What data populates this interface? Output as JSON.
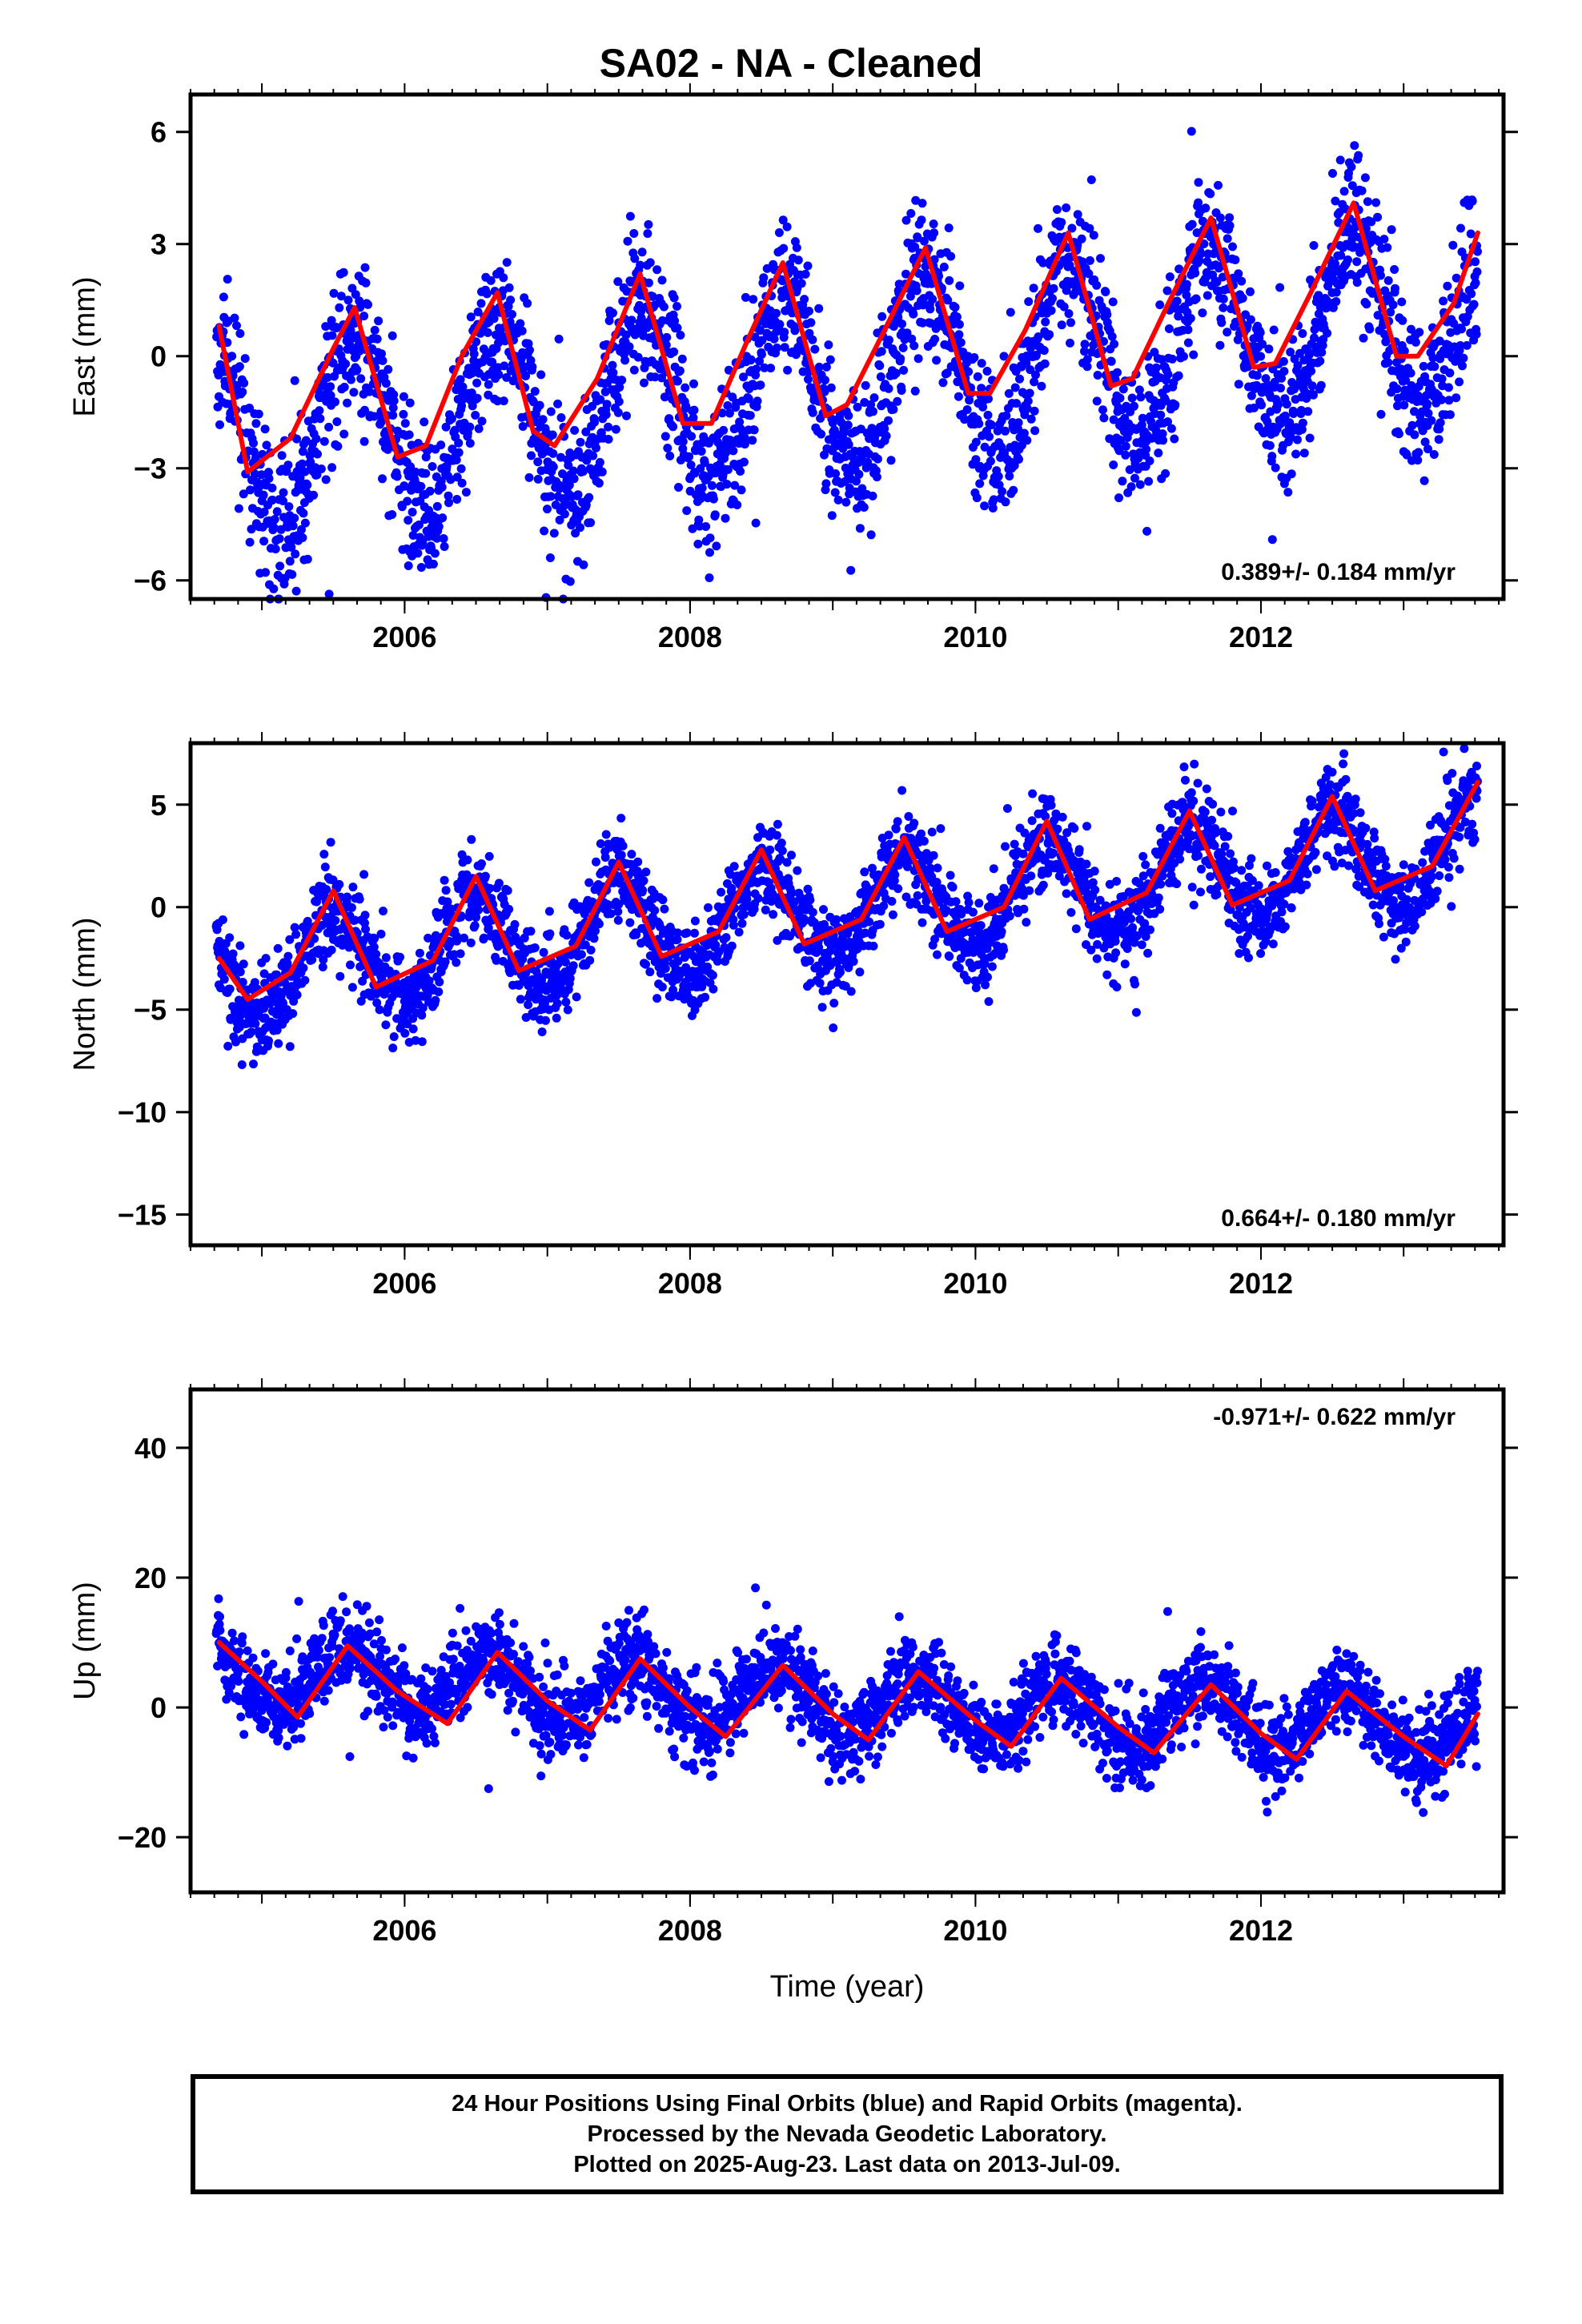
{
  "title": "SA02  - NA - Cleaned",
  "colors": {
    "points": "#0000ff",
    "fit": "#ff0000",
    "frame": "#000000"
  },
  "footer": {
    "line1": "24 Hour Positions Using Final Orbits (blue) and Rapid Orbits (magenta).",
    "line2": "Processed by the Nevada Geodetic Laboratory.",
    "line3": "Plotted on 2025-Aug-23. Last data on 2013-Jul-09."
  },
  "chart_data": [
    {
      "type": "scatter",
      "component": "east",
      "ylabel": "East (mm)",
      "xlabel": "",
      "xlim": [
        2004.5,
        2013.7
      ],
      "ylim": [
        -6.5,
        7.0
      ],
      "xticks": [
        2006,
        2008,
        2010,
        2012
      ],
      "yticks": [
        -6,
        -3,
        0,
        3,
        6
      ],
      "ytick_labels": [
        "−6",
        "−3",
        "0",
        "3",
        "6"
      ],
      "grid": false,
      "rate_text": "0.389+/- 0.184 mm/yr",
      "trend": {
        "slope": 0.389,
        "intercept": -0.6,
        "t0": 2009.0
      },
      "seasonal": {
        "amplitude": 2.4,
        "peak_phase": 0.65
      },
      "scatter_sd": 1.0,
      "series": [
        {
          "x": [
            2004.7,
            2004.9,
            2005.2,
            2005.5,
            2005.65,
            2005.95,
            2006.15,
            2006.4,
            2006.65,
            2006.9,
            2007.05,
            2007.35,
            2007.65,
            2007.95,
            2008.15,
            2008.4,
            2008.65,
            2008.95,
            2009.1,
            2009.35,
            2009.65,
            2009.95,
            2010.1,
            2010.35,
            2010.65,
            2010.95,
            2011.1,
            2011.35,
            2011.65,
            2011.95,
            2012.1,
            2012.35,
            2012.65,
            2012.95,
            2013.1,
            2013.35,
            2013.52
          ],
          "y": [
            0.8,
            -3.1,
            -2.2,
            0.2,
            1.3,
            -2.7,
            -2.4,
            0.0,
            1.7,
            -2.0,
            -2.4,
            -0.6,
            2.2,
            -1.8,
            -1.8,
            0.4,
            2.5,
            -1.6,
            -1.3,
            0.6,
            2.9,
            -1.0,
            -1.0,
            0.7,
            3.3,
            -0.8,
            -0.6,
            1.4,
            3.7,
            -0.3,
            -0.2,
            1.7,
            4.1,
            0.0,
            0.0,
            1.4,
            3.3
          ]
        }
      ]
    },
    {
      "type": "scatter",
      "component": "north",
      "ylabel": "North (mm)",
      "xlabel": "",
      "xlim": [
        2004.5,
        2013.7
      ],
      "ylim": [
        -16.5,
        8.0
      ],
      "xticks": [
        2006,
        2008,
        2010,
        2012
      ],
      "yticks": [
        -15,
        -10,
        -5,
        0,
        5
      ],
      "ytick_labels": [
        "−15",
        "−10",
        "−5",
        "0",
        "5"
      ],
      "grid": false,
      "rate_text": "0.664+/- 0.180 mm/yr",
      "trend": {
        "slope": 0.664,
        "intercept": -0.2,
        "t0": 2009.0
      },
      "seasonal": {
        "amplitude": 2.4,
        "peak_phase": 0.5
      },
      "scatter_sd": 1.1,
      "series": [
        {
          "x": [
            2004.7,
            2004.9,
            2005.2,
            2005.5,
            2005.8,
            2006.2,
            2006.5,
            2006.8,
            2007.2,
            2007.5,
            2007.8,
            2008.2,
            2008.5,
            2008.8,
            2009.2,
            2009.5,
            2009.8,
            2010.2,
            2010.5,
            2010.8,
            2011.2,
            2011.5,
            2011.8,
            2012.2,
            2012.5,
            2012.8,
            2013.2,
            2013.52
          ],
          "y": [
            -2.5,
            -4.5,
            -3.2,
            0.8,
            -3.9,
            -2.6,
            1.5,
            -3.1,
            -1.9,
            2.2,
            -2.4,
            -1.2,
            2.8,
            -1.8,
            -0.6,
            3.4,
            -1.2,
            0.0,
            4.2,
            -0.6,
            0.7,
            4.7,
            0.1,
            1.3,
            5.4,
            0.8,
            2.0,
            6.1
          ]
        }
      ]
    },
    {
      "type": "scatter",
      "component": "up",
      "ylabel": "Up (mm)",
      "xlabel": "Time (year)",
      "xlim": [
        2004.5,
        2013.7
      ],
      "ylim": [
        -28.5,
        49.0
      ],
      "xticks": [
        2006,
        2008,
        2010,
        2012
      ],
      "yticks": [
        -20,
        0,
        20,
        40
      ],
      "ytick_labels": [
        "−20",
        "0",
        "20",
        "40"
      ],
      "grid": false,
      "rate_text": "-0.971+/- 0.622 mm/yr",
      "trend": {
        "slope": -0.971,
        "intercept": 1.0,
        "t0": 2009.0
      },
      "seasonal": {
        "amplitude": 5.0,
        "peak_phase": 0.6
      },
      "scatter_sd": 3.2,
      "series": [
        {
          "x": [
            2004.7,
            2005.0,
            2005.25,
            2005.6,
            2005.95,
            2006.3,
            2006.65,
            2007.0,
            2007.3,
            2007.65,
            2008.0,
            2008.25,
            2008.65,
            2009.0,
            2009.25,
            2009.6,
            2010.0,
            2010.25,
            2010.6,
            2011.0,
            2011.25,
            2011.65,
            2012.0,
            2012.25,
            2012.6,
            2013.0,
            2013.3,
            2013.52
          ],
          "y": [
            10.0,
            4.0,
            -1.5,
            9.5,
            2.5,
            -2.5,
            8.5,
            1.0,
            -3.5,
            7.5,
            0.0,
            -4.5,
            6.5,
            -1.0,
            -5.0,
            5.5,
            -2.0,
            -6.0,
            4.5,
            -3.0,
            -7.0,
            3.5,
            -4.0,
            -8.0,
            2.5,
            -4.5,
            -9.0,
            -1.0
          ]
        }
      ]
    }
  ]
}
